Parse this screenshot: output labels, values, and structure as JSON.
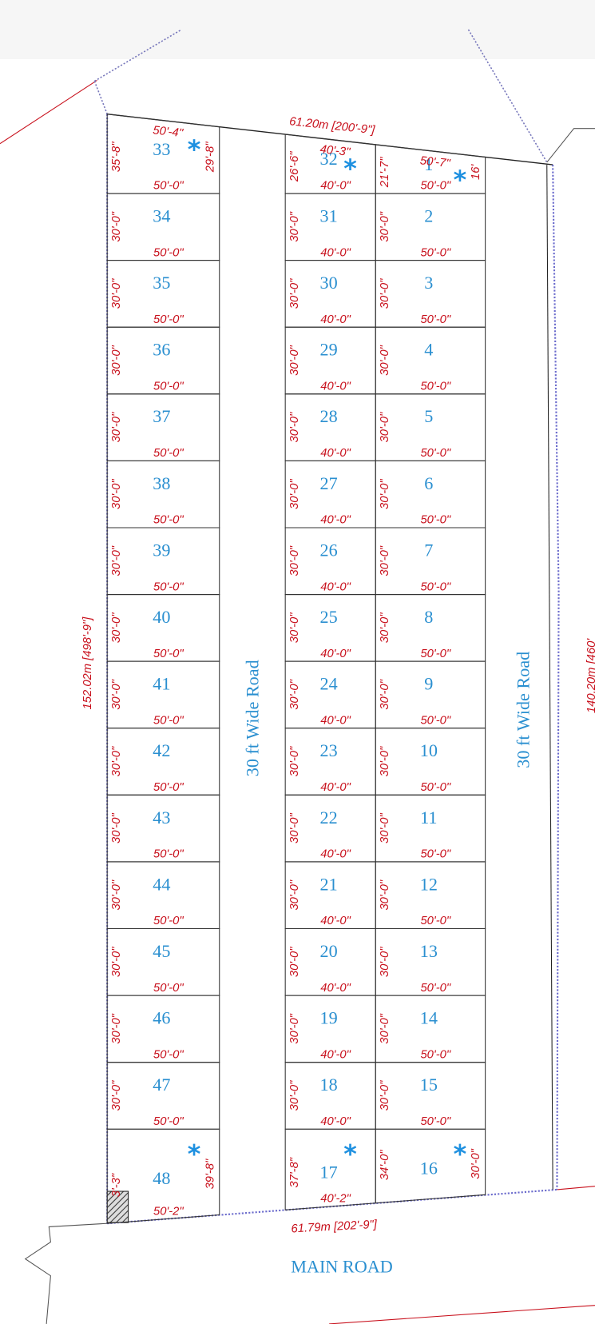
{
  "header": {
    "top_dimension": "61.20m [200'-9\"]",
    "bottom_dimension": "61.79m [202'-9\"]",
    "left_dimension": "152.02m [498'-9\"]",
    "right_dimension": "140.20m [460'"
  },
  "roads": {
    "left": "30 ft Wide Road",
    "right": "30 ft Wide Road",
    "main": "MAIN ROAD"
  },
  "columns": [
    {
      "plots": [
        {
          "no": "33",
          "mark": "*",
          "top": "50'-4\"",
          "side": "35'-8\"",
          "side_right": "29'-8\"",
          "bottom": "50'-0\""
        },
        {
          "no": "34",
          "side": "30'-0\"",
          "bottom": "50'-0\""
        },
        {
          "no": "35",
          "side": "30'-0\"",
          "bottom": "50'-0\""
        },
        {
          "no": "36",
          "side": "30'-0\"",
          "bottom": "50'-0\""
        },
        {
          "no": "37",
          "side": "30'-0\"",
          "bottom": "50'-0\""
        },
        {
          "no": "38",
          "side": "30'-0\"",
          "bottom": "50'-0\""
        },
        {
          "no": "39",
          "side": "30'-0\"",
          "bottom": "50'-0\""
        },
        {
          "no": "40",
          "side": "30'-0\"",
          "bottom": "50'-0\""
        },
        {
          "no": "41",
          "side": "30'-0\"",
          "bottom": "50'-0\""
        },
        {
          "no": "42",
          "side": "30'-0\"",
          "bottom": "50'-0\""
        },
        {
          "no": "43",
          "side": "30'-0\"",
          "bottom": "50'-0\""
        },
        {
          "no": "44",
          "side": "30'-0\"",
          "bottom": "50'-0\""
        },
        {
          "no": "45",
          "side": "30'-0\"",
          "bottom": "50'-0\""
        },
        {
          "no": "46",
          "side": "30'-0\"",
          "bottom": "50'-0\""
        },
        {
          "no": "47",
          "side": "30'-0\"",
          "bottom": "50'-0\""
        },
        {
          "no": "48",
          "mark": "*",
          "side": "3'-3\"",
          "side_right": "39'-8\"",
          "bottom": "50'-2\""
        }
      ]
    },
    {
      "plots": [
        {
          "no": "32",
          "mark": "*",
          "top": "40'-3\"",
          "side": "26'-6\"",
          "bottom": "40'-0\""
        },
        {
          "no": "31",
          "side": "30'-0\"",
          "bottom": "40'-0\""
        },
        {
          "no": "30",
          "side": "30'-0\"",
          "bottom": "40'-0\""
        },
        {
          "no": "29",
          "side": "30'-0\"",
          "bottom": "40'-0\""
        },
        {
          "no": "28",
          "side": "30'-0\"",
          "bottom": "40'-0\""
        },
        {
          "no": "27",
          "side": "30'-0\"",
          "bottom": "40'-0\""
        },
        {
          "no": "26",
          "side": "30'-0\"",
          "bottom": "40'-0\""
        },
        {
          "no": "25",
          "side": "30'-0\"",
          "bottom": "40'-0\""
        },
        {
          "no": "24",
          "side": "30'-0\"",
          "bottom": "40'-0\""
        },
        {
          "no": "23",
          "side": "30'-0\"",
          "bottom": "40'-0\""
        },
        {
          "no": "22",
          "side": "30'-0\"",
          "bottom": "40'-0\""
        },
        {
          "no": "21",
          "side": "30'-0\"",
          "bottom": "40'-0\""
        },
        {
          "no": "20",
          "side": "30'-0\"",
          "bottom": "40'-0\""
        },
        {
          "no": "19",
          "side": "30'-0\"",
          "bottom": "40'-0\""
        },
        {
          "no": "18",
          "side": "30'-0\"",
          "bottom": "40'-0\""
        },
        {
          "no": "17",
          "mark": "*",
          "side": "37'-8\"",
          "bottom": "40'-2\""
        }
      ]
    },
    {
      "plots": [
        {
          "no": "1",
          "mark": "*",
          "top": "50'-7\"",
          "side": "21'-7\"",
          "side_right": "16'",
          "bottom": "50'-0\""
        },
        {
          "no": "2",
          "side": "30'-0\"",
          "bottom": "50'-0\""
        },
        {
          "no": "3",
          "side": "30'-0\"",
          "bottom": "50'-0\""
        },
        {
          "no": "4",
          "side": "30'-0\"",
          "bottom": "50'-0\""
        },
        {
          "no": "5",
          "side": "30'-0\"",
          "bottom": "50'-0\""
        },
        {
          "no": "6",
          "side": "30'-0\"",
          "bottom": "50'-0\""
        },
        {
          "no": "7",
          "side": "30'-0\"",
          "bottom": "50'-0\""
        },
        {
          "no": "8",
          "side": "30'-0\"",
          "bottom": "50'-0\""
        },
        {
          "no": "9",
          "side": "30'-0\"",
          "bottom": "50'-0\""
        },
        {
          "no": "10",
          "side": "30'-0\"",
          "bottom": "50'-0\""
        },
        {
          "no": "11",
          "side": "30'-0\"",
          "bottom": "50'-0\""
        },
        {
          "no": "12",
          "side": "30'-0\"",
          "bottom": "50'-0\""
        },
        {
          "no": "13",
          "side": "30'-0\"",
          "bottom": "50'-0\""
        },
        {
          "no": "14",
          "side": "30'-0\"",
          "bottom": "50'-0\""
        },
        {
          "no": "15",
          "side": "30'-0\"",
          "bottom": "50'-0\""
        },
        {
          "no": "16",
          "mark": "*",
          "side": "34'-0\"",
          "side_right": "30'-0\""
        }
      ]
    }
  ]
}
